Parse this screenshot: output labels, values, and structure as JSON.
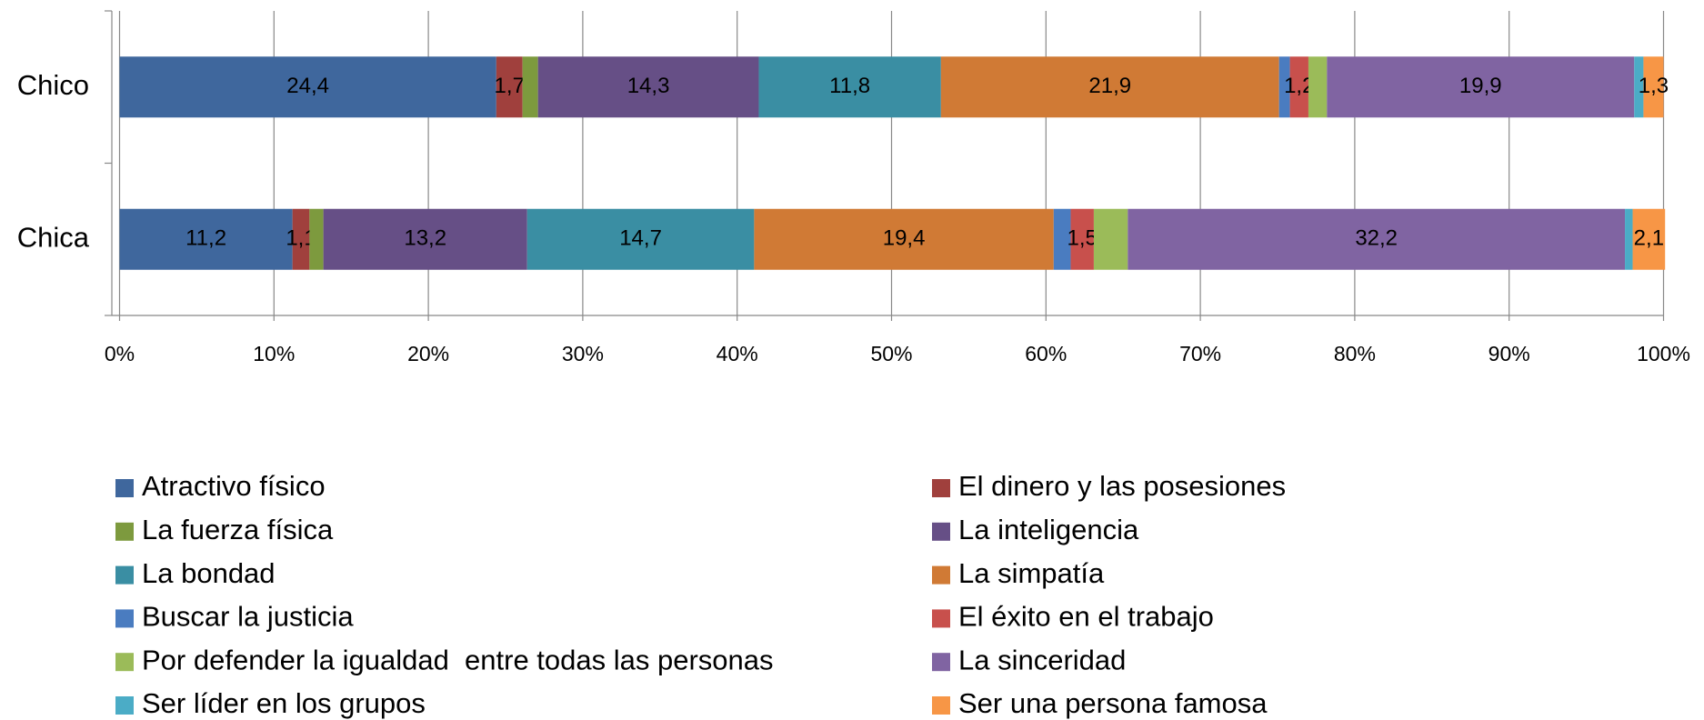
{
  "chart_data": {
    "type": "stacked_bar_horizontal",
    "categories": [
      "Chico",
      "Chica"
    ],
    "xlim": [
      0,
      100
    ],
    "xticks": [
      {
        "value": 0,
        "label": "0%"
      },
      {
        "value": 10,
        "label": "10%"
      },
      {
        "value": 20,
        "label": "20%"
      },
      {
        "value": 30,
        "label": "30%"
      },
      {
        "value": 40,
        "label": "40%"
      },
      {
        "value": 50,
        "label": "50%"
      },
      {
        "value": 60,
        "label": "60%"
      },
      {
        "value": 70,
        "label": "70%"
      },
      {
        "value": 80,
        "label": "80%"
      },
      {
        "value": 90,
        "label": "90%"
      },
      {
        "value": 100,
        "label": "100%"
      }
    ],
    "grid": true,
    "legend": "bottom",
    "series": [
      {
        "name": "Atractivo físico",
        "color": "#3f679d",
        "values": [
          24.4,
          11.2
        ],
        "value_labels": [
          "24,4",
          "11,2"
        ]
      },
      {
        "name": "El dinero y las posesiones",
        "color": "#a0403d",
        "values": [
          1.7,
          1.1
        ],
        "value_labels": [
          "1,7",
          "1,1"
        ]
      },
      {
        "name": "La fuerza física",
        "color": "#7d9a3e",
        "values": [
          1.0,
          0.9
        ],
        "value_labels": [
          null,
          null
        ]
      },
      {
        "name": "La inteligencia",
        "color": "#664f86",
        "values": [
          14.3,
          13.2
        ],
        "value_labels": [
          "14,3",
          "13,2"
        ]
      },
      {
        "name": "La bondad",
        "color": "#3a8ea3",
        "values": [
          11.8,
          14.7
        ],
        "value_labels": [
          "11,8",
          "14,7"
        ]
      },
      {
        "name": "La simpatía",
        "color": "#d07a35",
        "values": [
          21.9,
          19.4
        ],
        "value_labels": [
          "21,9",
          "19,4"
        ]
      },
      {
        "name": "Buscar la justicia",
        "color": "#4a7cc0",
        "values": [
          0.7,
          1.1
        ],
        "value_labels": [
          null,
          null
        ]
      },
      {
        "name": "El éxito en el trabajo",
        "color": "#c8504c",
        "values": [
          1.2,
          1.5
        ],
        "value_labels": [
          "1,2",
          "1,5"
        ]
      },
      {
        "name": "Por defender la igualdad  entre todas las personas",
        "color": "#9bbb59",
        "values": [
          1.2,
          2.2
        ],
        "value_labels": [
          null,
          null
        ]
      },
      {
        "name": "La sinceridad",
        "color": "#8064a2",
        "values": [
          19.9,
          32.2
        ],
        "value_labels": [
          "19,9",
          "32,2"
        ]
      },
      {
        "name": "Ser líder en los grupos",
        "color": "#4bacc6",
        "values": [
          0.6,
          0.5
        ],
        "value_labels": [
          null,
          null
        ]
      },
      {
        "name": "Ser una persona famosa",
        "color": "#f79646",
        "values": [
          1.3,
          2.1
        ],
        "value_labels": [
          "1,3",
          "2,1"
        ]
      }
    ]
  }
}
